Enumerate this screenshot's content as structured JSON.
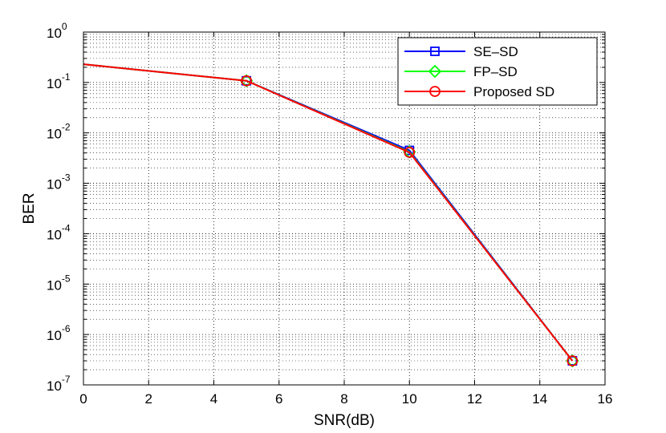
{
  "chart_data": {
    "type": "line",
    "title": "",
    "xlabel": "SNR(dB)",
    "ylabel": "BER",
    "xlim": [
      0,
      16
    ],
    "ylim": [
      1e-07,
      1
    ],
    "y_scale": "log",
    "grid": true,
    "legend_position": "top-right",
    "x_ticks": [
      0,
      2,
      4,
      6,
      8,
      10,
      12,
      14,
      16
    ],
    "y_ticks": [
      {
        "base": "10",
        "exp": "0"
      },
      {
        "base": "10",
        "exp": "-1"
      },
      {
        "base": "10",
        "exp": "-2"
      },
      {
        "base": "10",
        "exp": "-3"
      },
      {
        "base": "10",
        "exp": "-4"
      },
      {
        "base": "10",
        "exp": "-5"
      },
      {
        "base": "10",
        "exp": "-6"
      },
      {
        "base": "10",
        "exp": "-7"
      }
    ],
    "x": [
      0,
      5,
      10,
      15
    ],
    "series": [
      {
        "name": "SE–SD",
        "color": "#0000ff",
        "marker": "square",
        "values": [
          0.23,
          0.108,
          0.0045,
          3e-07
        ]
      },
      {
        "name": "FP–SD",
        "color": "#00ff00",
        "marker": "diamond",
        "values": [
          0.23,
          0.108,
          0.0042,
          3e-07
        ]
      },
      {
        "name": "Proposed SD",
        "color": "#ff0000",
        "marker": "circle",
        "values": [
          0.23,
          0.108,
          0.0041,
          3e-07
        ]
      }
    ]
  }
}
